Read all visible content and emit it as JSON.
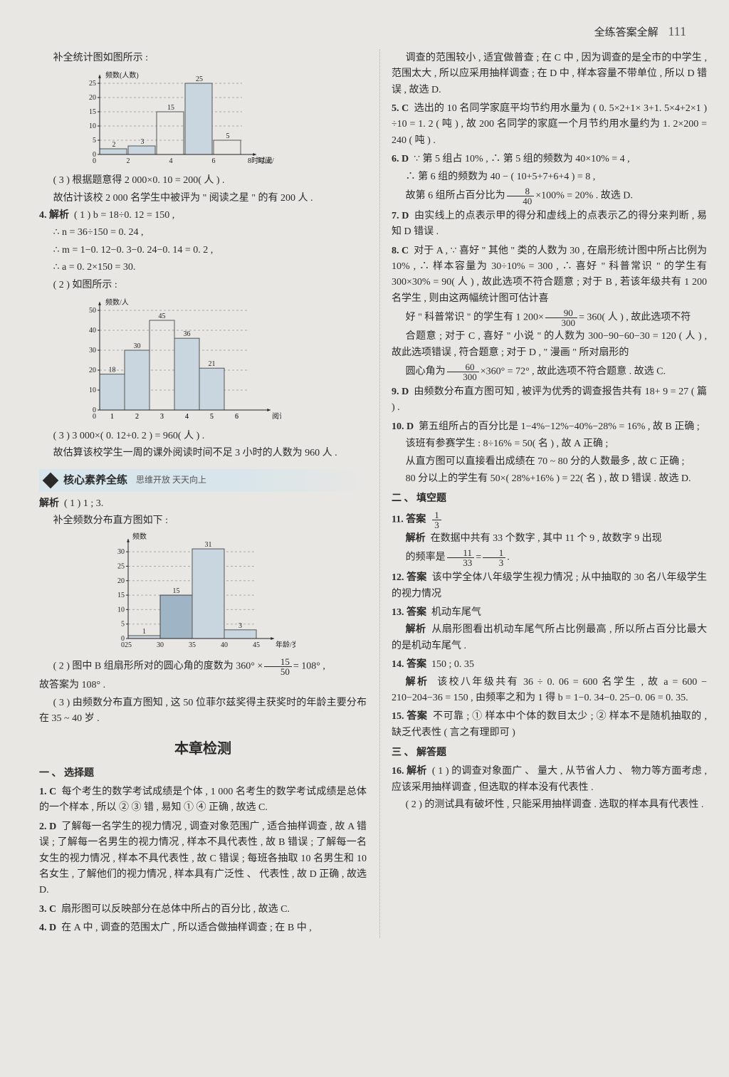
{
  "header": {
    "title": "全练答案全解",
    "page": "111"
  },
  "left": {
    "p1": "补全统计图如图所示 :",
    "chart1": {
      "type": "bar",
      "ylabel": "频数(人数)",
      "xlabel": "时间/小时",
      "xlabel_extra": "8时以上",
      "yticks": [
        0,
        5,
        10,
        15,
        20,
        25
      ],
      "xticks": [
        "2",
        "4",
        "6"
      ],
      "values": [
        2,
        3,
        15,
        25,
        5
      ],
      "value_labels": [
        "2",
        "3",
        "15",
        "25",
        "5"
      ],
      "bar_color": "#c9d6e0",
      "outline_bars": [
        2,
        4
      ],
      "bg": "#e8e7e3",
      "grid_color": "#bbbbbb"
    },
    "p2": "( 3 ) 根据题意得 2 000×0. 10 = 200( 人 ) .",
    "p3": "故估计该校 2 000 名学生中被评为 \" 阅读之星 \" 的有 200 人 .",
    "p4a": "4. 解析",
    "p4b": "( 1 ) b = 18÷0. 12 = 150 ,",
    "p5": "∴ n = 36÷150 = 0. 24 ,",
    "p6": "∴ m = 1−0. 12−0. 3−0. 24−0. 14 = 0. 2 ,",
    "p7": "∴ a = 0. 2×150 = 30.",
    "p8": "( 2 ) 如图所示 :",
    "chart2": {
      "type": "bar",
      "ylabel": "频数/人",
      "xlabel": "阅读时间/小时",
      "yticks": [
        0,
        10,
        20,
        30,
        40,
        50
      ],
      "xticks": [
        "1",
        "2",
        "3",
        "4",
        "5",
        "6"
      ],
      "values": [
        18,
        30,
        45,
        36,
        21
      ],
      "value_labels": [
        "18",
        "30",
        "45",
        "36",
        "21"
      ],
      "outline_index": 2,
      "bar_color": "#c9d6e0",
      "bg": "#e8e7e3"
    },
    "p9": "( 3 ) 3 000×( 0. 12+0. 2 ) = 960( 人 ) .",
    "p10": "故估算该校学生一周的课外阅读时间不足 3 小时的人数为 960 人 .",
    "section": {
      "title": "核心素养全练",
      "sub": "思维开放 天天向上"
    },
    "p11a": "解析",
    "p11b": "( 1 ) 1 ; 3.",
    "p12": "补全频数分布直方图如下 :",
    "chart3": {
      "type": "histogram",
      "ylabel": "频数",
      "xlabel": "年龄/岁",
      "yticks": [
        0,
        5,
        10,
        15,
        20,
        25,
        30
      ],
      "xticks": [
        "25",
        "30",
        "35",
        "40",
        "45"
      ],
      "values": [
        1,
        15,
        31,
        3
      ],
      "value_labels": [
        "1",
        "15",
        "31",
        "3"
      ],
      "highlight_index": 1,
      "bar_color_light": "#dce5ec",
      "bar_color_dark": "#9fb5c6"
    },
    "p13a": "( 2 ) 图中 B 组扇形所对的圆心角的度数为 360° ×",
    "p13_frac": {
      "num": "15",
      "den": "50"
    },
    "p13b": "= 108° ,",
    "p14": "故答案为 108° .",
    "p15": "( 3 ) 由频数分布直方图知 , 这 50 位菲尔兹奖得主获奖时的年龄主要分布在 35 ~ 40 岁 .",
    "chapter": "本章检测",
    "sh1": "一 、 选择题",
    "q1": {
      "num": "1. C",
      "body": "每个考生的数学考试成绩是个体 , 1 000 名考生的数学考试成绩是总体的一个样本 , 所以 ② ③ 错 , 易知 ① ④ 正确 , 故选 C."
    },
    "q2": {
      "num": "2. D",
      "body": "了解每一名学生的视力情况 , 调查对象范围广 , 适合抽样调查 , 故 A 错误 ; 了解每一名男生的视力情况 , 样本不具代表性 , 故 B 错误 ; 了解每一名女生的视力情况 , 样本不具代表性 , 故 C 错误 ; 每班各抽取 10 名男生和 10 名女生 , 了解他们的视力情况 , 样本具有广泛性 、 代表性 , 故 D 正确 , 故选 D."
    },
    "q3": {
      "num": "3. C",
      "body": "扇形图可以反映部分在总体中所占的百分比 , 故选 C."
    },
    "q4": {
      "num": "4. D",
      "body": "在 A 中 , 调查的范围太广 , 所以适合做抽样调查 ; 在 B 中 ,"
    }
  },
  "right": {
    "p1": "调查的范围较小 , 适宜做普查 ; 在 C 中 , 因为调查的是全市的中学生 , 范围太大 , 所以应采用抽样调查 ; 在 D 中 , 样本容量不带单位 , 所以 D 错误 , 故选 D.",
    "q5": {
      "num": "5. C",
      "body": "选出的 10 名同学家庭平均节约用水量为 ( 0. 5×2+1× 3+1. 5×4+2×1 ) ÷10 = 1. 2 ( 吨 ) , 故 200 名同学的家庭一个月节约用水量约为 1. 2×200 = 240 ( 吨 ) ."
    },
    "q6a": "6. D",
    "q6b": "∵ 第 5 组占 10% , ∴ 第 5 组的频数为 40×10% = 4 ,",
    "q6c": "∴ 第 6 组的频数为 40 − ( 10+5+7+6+4 ) = 8 ,",
    "q6d_a": "故第 6 组所占百分比为",
    "q6d_frac": {
      "num": "8",
      "den": "40"
    },
    "q6d_b": "×100% = 20% . 故选 D.",
    "q7": {
      "num": "7. D",
      "body": "由实线上的点表示甲的得分和虚线上的点表示乙的得分来判断 , 易知 D 错误 ."
    },
    "q8a": "8. C",
    "q8b": "对于 A , ∵ 喜好 \" 其他 \" 类的人数为 30 , 在扇形统计图中所占比例为 10% , ∴ 样本容量为 30÷10% = 300 , ∴ 喜好 \" 科普常识 \" 的学生有 300×30% = 90( 人 ) , 故此选项不符合题意 ; 对于 B , 若该年级共有 1 200 名学生 , 则由这两幅统计图可估计喜",
    "q8c_a": "好 \" 科普常识 \" 的学生有 1 200×",
    "q8c_frac": {
      "num": "90",
      "den": "300"
    },
    "q8c_b": "= 360( 人 ) , 故此选项不符",
    "q8d": "合题意 ; 对于 C , 喜好 \" 小说 \" 的人数为 300−90−60−30 = 120 ( 人 ) , 故此选项错误 , 符合题意 ; 对于 D , \" 漫画 \" 所对扇形的",
    "q8e_a": "圆心角为",
    "q8e_frac": {
      "num": "60",
      "den": "300"
    },
    "q8e_b": "×360° = 72° , 故此选项不符合题意 . 故选 C.",
    "q9": {
      "num": "9. D",
      "body": "由频数分布直方图可知 , 被评为优秀的调查报告共有 18+ 9 = 27 ( 篇 ) ."
    },
    "q10a": "10. D",
    "q10b": "第五组所占的百分比是 1−4%−12%−40%−28% = 16% , 故 B 正确 ;",
    "q10c": "该班有参赛学生 : 8÷16% = 50( 名 ) , 故 A 正确 ;",
    "q10d": "从直方图可以直接看出成绩在 70 ~ 80 分的人数最多 , 故 C 正确 ;",
    "q10e": "80 分以上的学生有 50×( 28%+16% ) = 22( 名 ) , 故 D 错误 . 故选 D.",
    "sh2": "二 、 填空题",
    "q11a": "11. 答案",
    "q11_frac": {
      "num": "1",
      "den": "3"
    },
    "q11ba": "解析",
    "q11bb": "在数据中共有 33 个数字 , 其中 11 个 9 , 故数字 9 出现",
    "q11c_a": "的频率是",
    "q11c_frac1": {
      "num": "11",
      "den": "33"
    },
    "q11c_mid": "=",
    "q11c_frac2": {
      "num": "1",
      "den": "3"
    },
    "q11c_b": ".",
    "q12": {
      "num": "12. 答案",
      "body": "该中学全体八年级学生视力情况 ; 从中抽取的 30 名八年级学生的视力情况"
    },
    "q13a": "13. 答案",
    "q13b": "机动车尾气",
    "q13ca": "解析",
    "q13cb": "从扇形图看出机动车尾气所占比例最高 , 所以所占百分比最大的是机动车尾气 .",
    "q14a": "14. 答案",
    "q14b": "150 ; 0. 35",
    "q14ca": "解析",
    "q14cb": "该校八年级共有 36 ÷ 0. 06 = 600 名学生 , 故 a = 600 − 210−204−36 = 150 , 由频率之和为 1 得 b = 1−0. 34−0. 25−0. 06 = 0. 35.",
    "q15a": "15. 答案",
    "q15b": "不可靠 ; ① 样本中个体的数目太少 ; ② 样本不是随机抽取的 , 缺乏代表性 ( 言之有理即可 )",
    "sh3": "三 、 解答题",
    "q16a": "16. 解析",
    "q16b": "( 1 ) 的调查对象面广 、 量大 , 从节省人力 、 物力等方面考虑 , 应该采用抽样调查 , 但选取的样本没有代表性 .",
    "q16c": "( 2 ) 的测试具有破坏性 , 只能采用抽样调查 . 选取的样本具有代表性 ."
  }
}
